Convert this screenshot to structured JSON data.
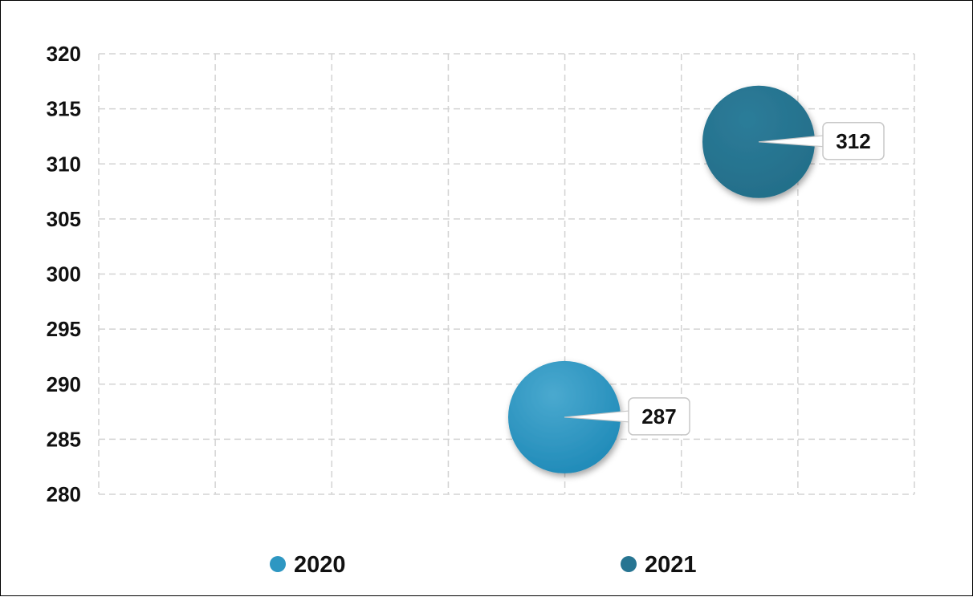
{
  "chart_data": {
    "type": "scatter",
    "title": "",
    "xlabel": "",
    "ylabel": "",
    "ylim": [
      280,
      320
    ],
    "yticks": [
      320,
      315,
      310,
      305,
      300,
      295,
      290,
      285,
      280
    ],
    "grid": true,
    "legend_position": "bottom",
    "series": [
      {
        "name": "2020",
        "color": "#2e97c2",
        "points": [
          {
            "value": 287,
            "label": "287"
          }
        ]
      },
      {
        "name": "2021",
        "color": "#277592",
        "points": [
          {
            "value": 312,
            "label": "312"
          }
        ]
      }
    ]
  }
}
